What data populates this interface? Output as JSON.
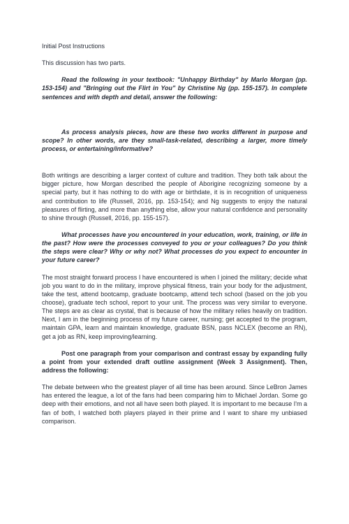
{
  "header": {
    "line1": "Initial Post Instructions",
    "line2": "This discussion has two parts."
  },
  "p1": "Read the following in your textbook: \"Unhappy Birthday\" by Marlo Morgan (pp. 153-154) and \"Bringing out the Flirt in You\" by Christine Ng (pp. 155-157). In complete sentences and with depth and detail, answer the following:",
  "q1": "As process analysis pieces, how are these two works different in purpose and scope? In other words, are they small-task-related, describing a larger, more timely process, or entertaining/informative?",
  "a1": "Both writings are describing a larger context of culture and tradition.  They both talk about the bigger picture, how Morgan described the people of Aborigine recognizing someone by a special party, but it has nothing to do with age or birthdate, it is in recognition of uniqueness and contribution to life (Russell, 2016, pp. 153-154); and Ng suggests to enjoy the natural pleasures of flirting, and more than anything else, allow your natural confidence and personality to shine through (Russell, 2016, pp. 155-157).",
  "q2": "What processes have you encountered in your education, work, training, or life in the past? How were the processes conveyed to you or your colleagues? Do you think the steps were clear? Why or why not?  What processes do you expect to encounter in your future career?",
  "a2": "The most straight forward process I have encountered is when I joined the military; decide what job you want to do in the military, improve physical fitness, train your body for the adjustment, take the test, attend bootcamp, graduate bootcamp, attend tech school (based on the job you choose), graduate tech school, report to your unit. The process was very similar to everyone. The steps are as clear as crystal, that is because of how the military relies heavily on tradition. Next, I am in the beginning process of my future career, nursing; get accepted to the program, maintain GPA, learn and maintain knowledge, graduate BSN, pass NCLEX (become an RN), get a job as RN, keep improving/learning.",
  "p2": "Post one paragraph from your comparison and contrast essay by expanding fully a point from your extended draft outline assignment (Week 3 Assignment). Then, address the following:",
  "a3": "The debate between who the greatest player of all time has been around.  Since LeBron James has entered the league, a lot of the fans had been comparing him to Michael Jordan.  Some go deep with their emotions, and not all have seen both played.  It is important to me because I'm a fan of both, I watched both players played in their prime and I want to share my unbiased comparison."
}
